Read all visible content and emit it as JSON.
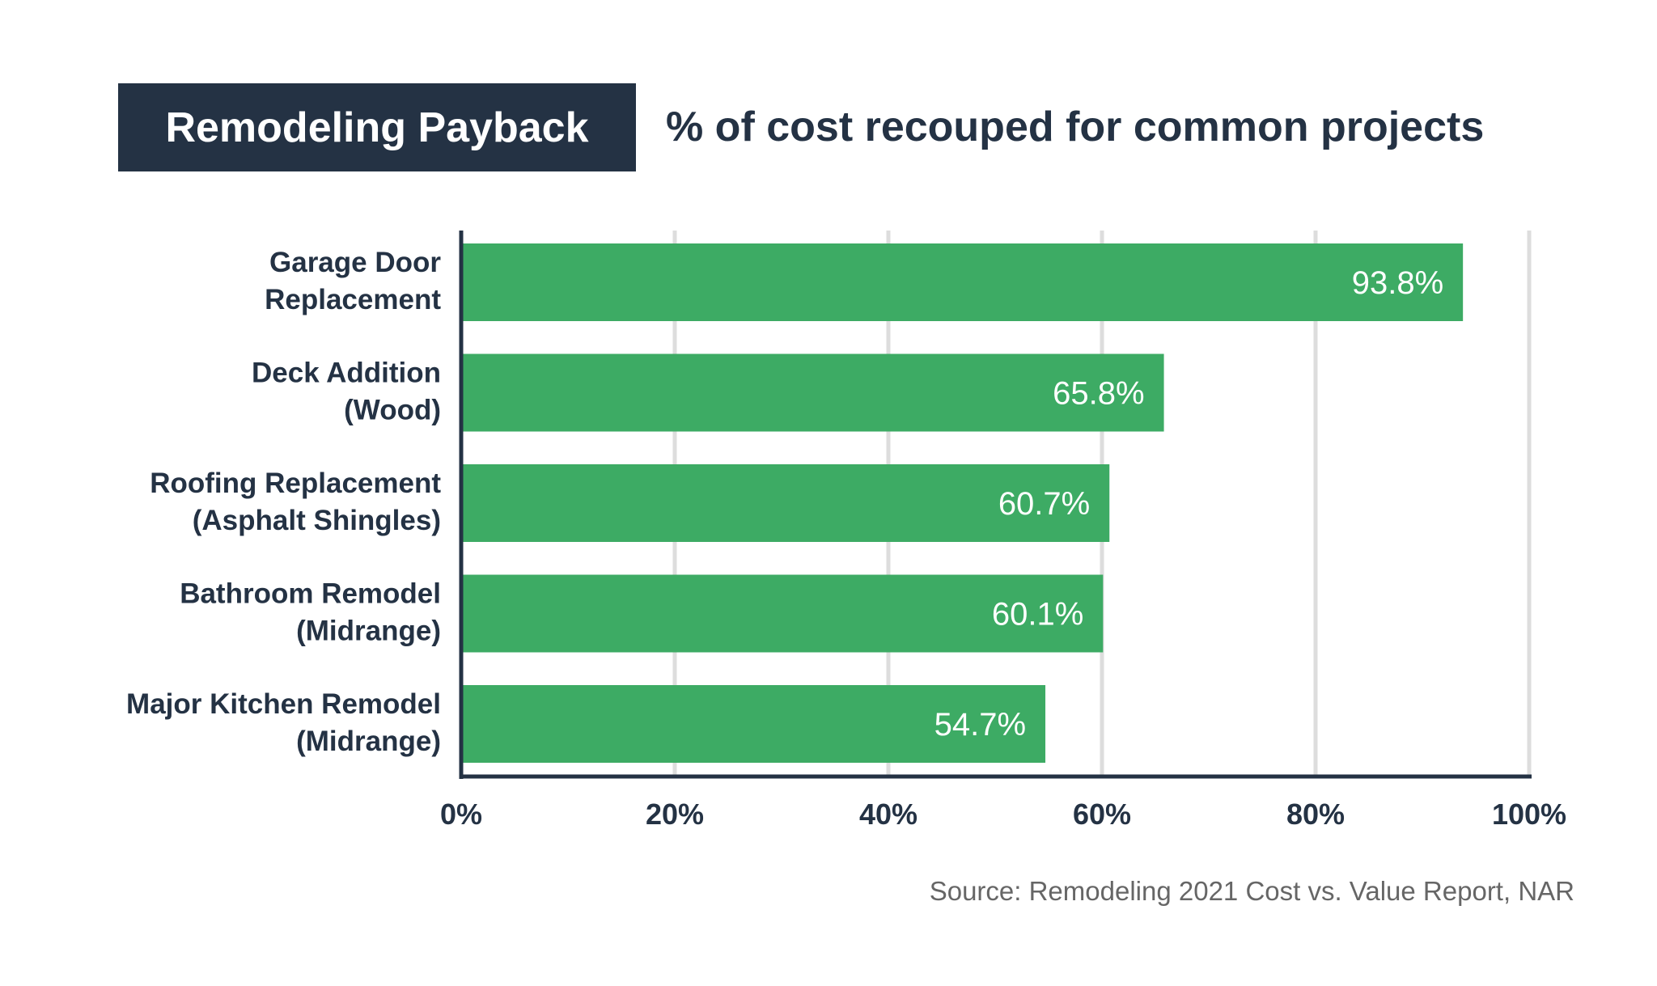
{
  "header": {
    "title": "Remodeling Payback",
    "subtitle": "% of cost recouped for common projects"
  },
  "footer": {
    "source": "Source: Remodeling 2021 Cost vs. Value Report, NAR"
  },
  "colors": {
    "bar": "#3dab64",
    "title_bg": "#243244",
    "text_dark": "#243244",
    "grid": "#dddddd",
    "source_text": "#666666"
  },
  "chart_data": {
    "type": "bar",
    "orientation": "horizontal",
    "categories": [
      [
        "Garage Door",
        "Replacement"
      ],
      [
        "Deck Addition",
        "(Wood)"
      ],
      [
        "Roofing Replacement",
        "(Asphalt Shingles)"
      ],
      [
        "Bathroom Remodel",
        "(Midrange)"
      ],
      [
        "Major Kitchen Remodel",
        "(Midrange)"
      ]
    ],
    "values": [
      93.8,
      65.8,
      60.7,
      60.1,
      54.7
    ],
    "data_labels": [
      "93.8%",
      "65.8%",
      "60.7%",
      "60.1%",
      "54.7%"
    ],
    "xlim": [
      0,
      100
    ],
    "xticks": [
      0,
      20,
      40,
      60,
      80,
      100
    ],
    "xtick_labels": [
      "0%",
      "20%",
      "40%",
      "60%",
      "80%",
      "100%"
    ],
    "grid": true
  }
}
